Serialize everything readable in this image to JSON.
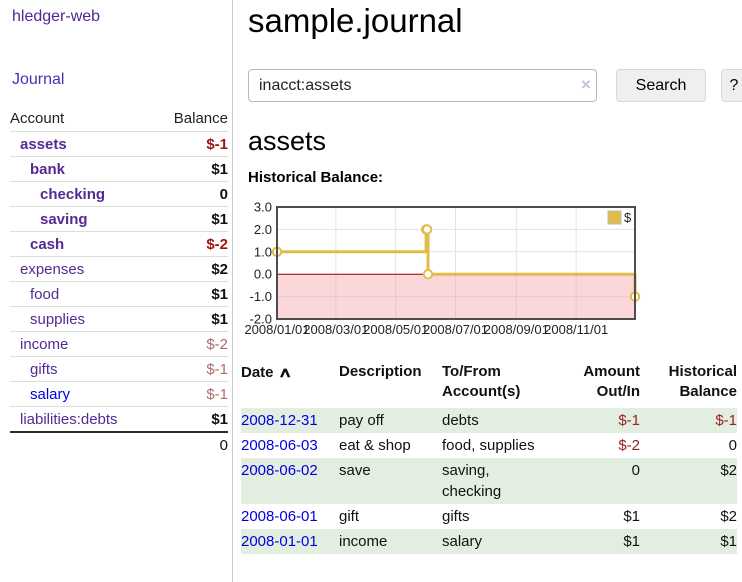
{
  "sidebar": {
    "brand": "hledger-web",
    "nav": {
      "journal": "Journal"
    },
    "accounts_table": {
      "headers": {
        "account": "Account",
        "balance": "Balance"
      },
      "rows": [
        {
          "name": "assets",
          "indent": 1,
          "bold": true,
          "balance": "$-1",
          "balance_style": "neg-strong"
        },
        {
          "name": "bank",
          "indent": 2,
          "bold": true,
          "balance": "$1",
          "balance_style": "pos"
        },
        {
          "name": "checking",
          "indent": 3,
          "bold": true,
          "balance": "0",
          "balance_style": "pos"
        },
        {
          "name": "saving",
          "indent": 3,
          "bold": true,
          "balance": "$1",
          "balance_style": "pos"
        },
        {
          "name": "cash",
          "indent": 2,
          "bold": true,
          "balance": "$-2",
          "balance_style": "neg-strong"
        },
        {
          "name": "expenses",
          "indent": 1,
          "bold": false,
          "balance": "$2",
          "balance_style": "pos"
        },
        {
          "name": "food",
          "indent": 2,
          "bold": false,
          "balance": "$1",
          "balance_style": "pos"
        },
        {
          "name": "supplies",
          "indent": 2,
          "bold": false,
          "balance": "$1",
          "balance_style": "pos"
        },
        {
          "name": "income",
          "indent": 1,
          "bold": false,
          "balance": "$-2",
          "balance_style": "neg-soft"
        },
        {
          "name": "gifts",
          "indent": 2,
          "bold": false,
          "balance": "$-1",
          "balance_style": "neg-soft"
        },
        {
          "name": "salary",
          "indent": 2,
          "bold": false,
          "link_style": "blue",
          "balance": "$-1",
          "balance_style": "neg-soft"
        },
        {
          "name": "liabilities:debts",
          "indent": 1,
          "bold": false,
          "balance": "$1",
          "balance_style": "pos"
        }
      ],
      "total": "0"
    }
  },
  "main": {
    "title": "sample.journal",
    "search": {
      "value": "inacct:assets",
      "clear_icon": "×",
      "button": "Search",
      "help_button": "?"
    },
    "account_heading": "assets",
    "chart_label": "Historical Balance:",
    "register_table": {
      "headers": {
        "date": "Date",
        "sort_indicator": "∧",
        "description": "Description",
        "accounts": "To/From\nAccount(s)",
        "amount": "Amount\nOut/In",
        "balance": "Historical\nBalance"
      },
      "rows": [
        {
          "date": "2008-12-31",
          "description": "pay off",
          "accounts": "debts",
          "amount": "$-1",
          "amount_style": "neg",
          "balance": "$-1",
          "balance_style": "neg",
          "shaded": true
        },
        {
          "date": "2008-06-03",
          "description": "eat & shop",
          "accounts": "food, supplies",
          "amount": "$-2",
          "amount_style": "neg",
          "balance": "0",
          "balance_style": "pos",
          "shaded": false
        },
        {
          "date": "2008-06-02",
          "description": "save",
          "accounts": "saving,\nchecking",
          "amount": "0",
          "amount_style": "pos",
          "balance": "$2",
          "balance_style": "pos",
          "shaded": true
        },
        {
          "date": "2008-06-01",
          "description": "gift",
          "accounts": "gifts",
          "amount": "$1",
          "amount_style": "pos",
          "balance": "$2",
          "balance_style": "pos",
          "shaded": false
        },
        {
          "date": "2008-01-01",
          "description": "income",
          "accounts": "salary",
          "amount": "$1",
          "amount_style": "pos",
          "balance": "$1",
          "balance_style": "pos",
          "shaded": true
        }
      ]
    }
  },
  "chart_data": {
    "type": "line",
    "step": true,
    "title": "Historical Balance",
    "series": [
      {
        "name": "$",
        "points": [
          [
            "2008-01-01",
            1
          ],
          [
            "2008-06-01",
            2
          ],
          [
            "2008-06-02",
            2
          ],
          [
            "2008-06-03",
            0
          ],
          [
            "2008-12-31",
            -1
          ]
        ]
      }
    ],
    "x_range": [
      "2008-01-01",
      "2008-12-31"
    ],
    "x_ticks": [
      "2008/01/01",
      "2008/03/01",
      "2008/05/01",
      "2008/07/01",
      "2008/09/01",
      "2008/11/01"
    ],
    "y_ticks": [
      3.0,
      2.0,
      1.0,
      0.0,
      -1.0,
      -2.0
    ],
    "ylim": [
      -2,
      3
    ],
    "legend": "$",
    "legend_position": "top-right",
    "grid": true,
    "colors": {
      "line": "#e2bc4a",
      "marker_fill": "#ffffff",
      "negative_region": "#f6a0a5",
      "zero_line": "#990000",
      "grid": "#e2e2e2",
      "border": "#4d4d4d"
    }
  }
}
